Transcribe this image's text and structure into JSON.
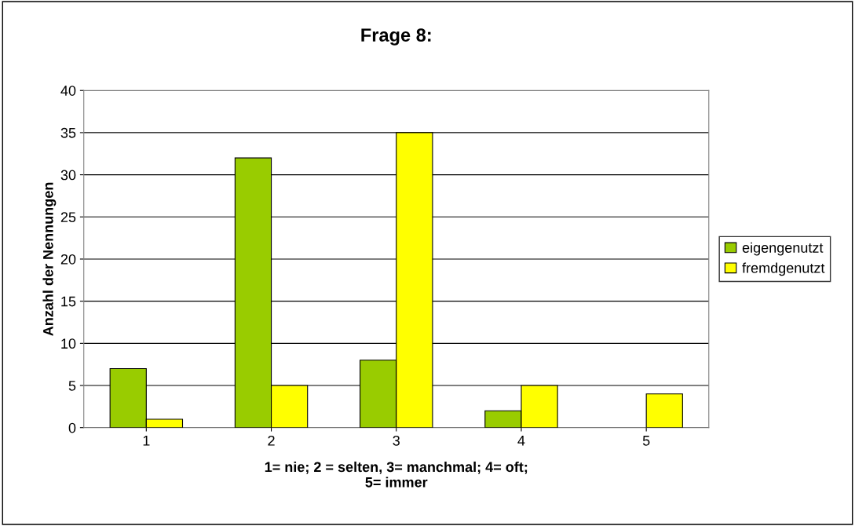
{
  "chart_data": {
    "type": "bar",
    "title": "Frage 8:",
    "xlabel": "1= nie; 2 = selten, 3= manchmal; 4= oft;\n5= immer",
    "ylabel": "Anzahl der Nennungen",
    "categories": [
      "1",
      "2",
      "3",
      "4",
      "5"
    ],
    "series": [
      {
        "name": "eigengenutzt",
        "color": "#99cc00",
        "values": [
          7,
          32,
          8,
          2,
          null
        ]
      },
      {
        "name": "fremdgenutzt",
        "color": "#ffff00",
        "values": [
          1,
          5,
          35,
          5,
          4
        ]
      }
    ],
    "ylim": [
      0,
      40
    ],
    "yticks": [
      0,
      5,
      10,
      15,
      20,
      25,
      30,
      35,
      40
    ],
    "grid": "y",
    "legend": "right"
  }
}
